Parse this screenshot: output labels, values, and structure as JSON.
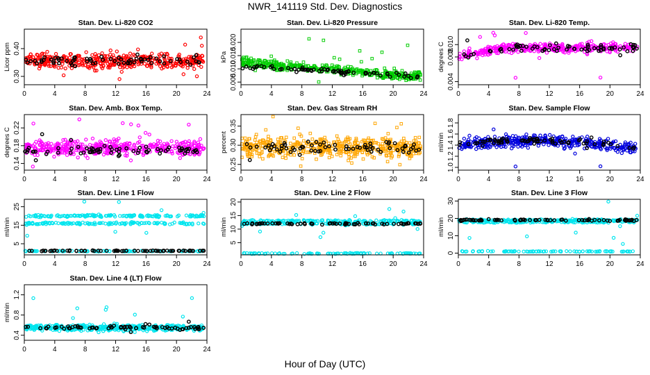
{
  "figure": {
    "title": "NWR_141119  Std. Dev. Diagnostics",
    "xlabel": "Hour of Day (UTC)"
  },
  "chart_data": [
    {
      "type": "scatter",
      "title": "Stan. Dev. Li-820 CO2",
      "ylabel": "Licor ppm",
      "xlim": [
        0,
        24
      ],
      "ylim": [
        0.27,
        0.47
      ],
      "xticks": [
        0,
        4,
        8,
        12,
        16,
        20,
        24
      ],
      "yticks": [
        "0.30",
        "0.40"
      ],
      "ytick_values": [
        0.3,
        0.4
      ],
      "series": [
        {
          "values": {
            "mode": "band",
            "center": 0.355,
            "spread": 0.045,
            "outlier": [
              0.29,
              0.46
            ],
            "shape": "ring",
            "density": 420
          },
          "color": "#ff0000"
        },
        {
          "values": {
            "mode": "band",
            "center": 0.355,
            "spread": 0.03,
            "outlier": [
              0.31,
              0.43
            ],
            "shape": "ring",
            "density": 70
          },
          "color": "#000000"
        }
      ]
    },
    {
      "type": "scatter",
      "title": "Stan. Dev. Li-820 Pressure",
      "ylabel": "kPa",
      "xlim": [
        0,
        24
      ],
      "ylim": [
        0.004,
        0.025
      ],
      "xticks": [
        0,
        4,
        8,
        12,
        16,
        20,
        24
      ],
      "yticks": [
        "0.005",
        "0.010",
        "0.015",
        "0.020"
      ],
      "ytick_values": [
        0.005,
        0.01,
        0.015,
        0.02
      ],
      "series": [
        {
          "values": {
            "mode": "decline",
            "start": 0.0125,
            "end": 0.007,
            "spread": 0.0035,
            "outlier": [
              0.005,
              0.024
            ],
            "shape": "square",
            "density": 420
          },
          "color": "#00cc00"
        },
        {
          "values": {
            "mode": "decline",
            "start": 0.011,
            "end": 0.007,
            "spread": 0.002,
            "outlier": [
              0.006,
              0.015
            ],
            "shape": "ring",
            "density": 70
          },
          "color": "#000000"
        }
      ]
    },
    {
      "type": "scatter",
      "title": "Stan. Dev. Li-820 Temp.",
      "ylabel": "degrees C",
      "xlim": [
        0,
        24
      ],
      "ylim": [
        0.0035,
        0.0125
      ],
      "xticks": [
        0,
        4,
        8,
        12,
        16,
        20,
        24
      ],
      "yticks": [
        "0.004",
        "0.008",
        "0.010"
      ],
      "ytick_values": [
        0.004,
        0.008,
        0.01
      ],
      "series": [
        {
          "values": {
            "mode": "hump",
            "center": 0.0095,
            "spread": 0.0012,
            "outlier": [
              0.0045,
              0.012
            ],
            "shape": "ring",
            "density": 380
          },
          "color": "#ff00ff"
        },
        {
          "values": {
            "mode": "hump",
            "center": 0.0095,
            "spread": 0.0009,
            "outlier": [
              0.007,
              0.0115
            ],
            "shape": "ring",
            "density": 70
          },
          "color": "#000000"
        }
      ]
    },
    {
      "type": "scatter",
      "title": "Stan. Dev. Amb. Box Temp.",
      "ylabel": "degrees C",
      "xlim": [
        0,
        24
      ],
      "ylim": [
        0.125,
        0.25
      ],
      "xticks": [
        0,
        4,
        8,
        12,
        16,
        20,
        24
      ],
      "yticks": [
        "0.14",
        "0.18",
        "0.22"
      ],
      "ytick_values": [
        0.14,
        0.18,
        0.22
      ],
      "series": [
        {
          "values": {
            "mode": "band",
            "center": 0.175,
            "spread": 0.03,
            "outlier": [
              0.13,
              0.24
            ],
            "shape": "ring",
            "density": 420
          },
          "color": "#ff00ff"
        },
        {
          "values": {
            "mode": "band",
            "center": 0.17,
            "spread": 0.02,
            "outlier": [
              0.135,
              0.21
            ],
            "shape": "ring",
            "density": 70
          },
          "color": "#000000"
        }
      ]
    },
    {
      "type": "scatter",
      "title": "Stan. Dev. Gas Stream RH",
      "ylabel": "percent",
      "xlim": [
        0,
        24
      ],
      "ylim": [
        0.235,
        0.38
      ],
      "xticks": [
        0,
        4,
        8,
        12,
        16,
        20,
        24
      ],
      "yticks": [
        "0.25",
        "0.30",
        "0.35"
      ],
      "ytick_values": [
        0.25,
        0.3,
        0.35
      ],
      "series": [
        {
          "values": {
            "mode": "band",
            "center": 0.295,
            "spread": 0.045,
            "outlier": [
              0.24,
              0.375
            ],
            "shape": "square",
            "density": 520
          },
          "color": "#ffa500"
        },
        {
          "values": {
            "mode": "band",
            "center": 0.295,
            "spread": 0.025,
            "outlier": [
              0.26,
              0.34
            ],
            "shape": "ring",
            "density": 70
          },
          "color": "#000000"
        }
      ]
    },
    {
      "type": "scatter",
      "title": "Stan. Dev. Sample Flow",
      "ylabel": "ml/min",
      "xlim": [
        0,
        24
      ],
      "ylim": [
        0.95,
        1.95
      ],
      "xticks": [
        0,
        4,
        8,
        12,
        16,
        20,
        24
      ],
      "yticks": [
        "1.0",
        "1.2",
        "1.4",
        "1.6",
        "1.8"
      ],
      "ytick_values": [
        1.0,
        1.2,
        1.4,
        1.6,
        1.8
      ],
      "series": [
        {
          "values": {
            "mode": "hump2",
            "center": 1.4,
            "spread": 0.18,
            "outlier": [
              1.0,
              1.9
            ],
            "shape": "ring",
            "density": 420
          },
          "color": "#0000dd"
        },
        {
          "values": {
            "mode": "hump2",
            "center": 1.4,
            "spread": 0.12,
            "outlier": [
              1.1,
              1.7
            ],
            "shape": "ring",
            "density": 70
          },
          "color": "#000000"
        }
      ]
    },
    {
      "type": "scatter",
      "title": "Stan. Dev. Line 1 Flow",
      "ylabel": "ml/min",
      "xlim": [
        0,
        24
      ],
      "ylim": [
        -1,
        29
      ],
      "xticks": [
        0,
        4,
        8,
        12,
        16,
        20,
        24
      ],
      "yticks": [
        "5",
        "15",
        "25"
      ],
      "ytick_values": [
        5,
        15,
        25
      ],
      "series": [
        {
          "values": {
            "mode": "twoBand",
            "centers": [
              20,
              16
            ],
            "spread": 1.2,
            "low": 1,
            "outlier": [
              8,
              28
            ],
            "shape": "ring",
            "density": 380
          },
          "color": "#00e5ee"
        },
        {
          "values": {
            "mode": "flat",
            "center": 1.2,
            "spread": 0.3,
            "shape": "ring",
            "density": 70
          },
          "color": "#000000"
        }
      ]
    },
    {
      "type": "scatter",
      "title": "Stan. Dev. Line 2 Flow",
      "ylabel": "ml/min",
      "xlim": [
        0,
        24
      ],
      "ylim": [
        0.5,
        21
      ],
      "xticks": [
        0,
        4,
        8,
        12,
        16,
        20,
        24
      ],
      "yticks": [
        "5",
        "10",
        "15",
        "20"
      ],
      "ytick_values": [
        5,
        10,
        15,
        20
      ],
      "series": [
        {
          "values": {
            "mode": "twoBand",
            "centers": [
              13,
              12
            ],
            "spread": 0.8,
            "low": 1,
            "outlier": [
              4,
              19
            ],
            "shape": "ring",
            "density": 380
          },
          "color": "#00e5ee"
        },
        {
          "values": {
            "mode": "flat",
            "center": 12,
            "spread": 0.5,
            "shape": "ring",
            "density": 70
          },
          "color": "#000000"
        }
      ]
    },
    {
      "type": "scatter",
      "title": "Stan. Dev. Line 3 Flow",
      "ylabel": "ml/min",
      "xlim": [
        0,
        24
      ],
      "ylim": [
        -1,
        31
      ],
      "xticks": [
        0,
        4,
        8,
        12,
        16,
        20,
        24
      ],
      "yticks": [
        "0",
        "10",
        "20",
        "30"
      ],
      "ytick_values": [
        0,
        10,
        20,
        30
      ],
      "series": [
        {
          "values": {
            "mode": "twoBand",
            "centers": [
              19,
              18
            ],
            "spread": 1.2,
            "low": 1,
            "outlier": [
              5,
              30
            ],
            "shape": "ring",
            "density": 380
          },
          "color": "#00e5ee"
        },
        {
          "values": {
            "mode": "flat",
            "center": 19,
            "spread": 0.8,
            "shape": "ring",
            "density": 70
          },
          "color": "#000000"
        }
      ]
    },
    {
      "type": "scatter",
      "title": "Stan. Dev. Line 4 (LT) Flow",
      "ylabel": "ml/min",
      "xlim": [
        0,
        24
      ],
      "ylim": [
        0.3,
        1.4
      ],
      "xticks": [
        0,
        4,
        8,
        12,
        16,
        20,
        24
      ],
      "yticks": [
        "0.4",
        "0.8",
        "1.2"
      ],
      "ytick_values": [
        0.4,
        0.8,
        1.2
      ],
      "series": [
        {
          "values": {
            "mode": "band",
            "center": 0.55,
            "spread": 0.1,
            "outlier": [
              0.38,
              1.3
            ],
            "shape": "ring",
            "density": 420
          },
          "color": "#00e5ee"
        },
        {
          "values": {
            "mode": "band",
            "center": 0.55,
            "spread": 0.06,
            "outlier": [
              0.42,
              0.7
            ],
            "shape": "ring",
            "density": 70
          },
          "color": "#000000"
        }
      ]
    }
  ]
}
